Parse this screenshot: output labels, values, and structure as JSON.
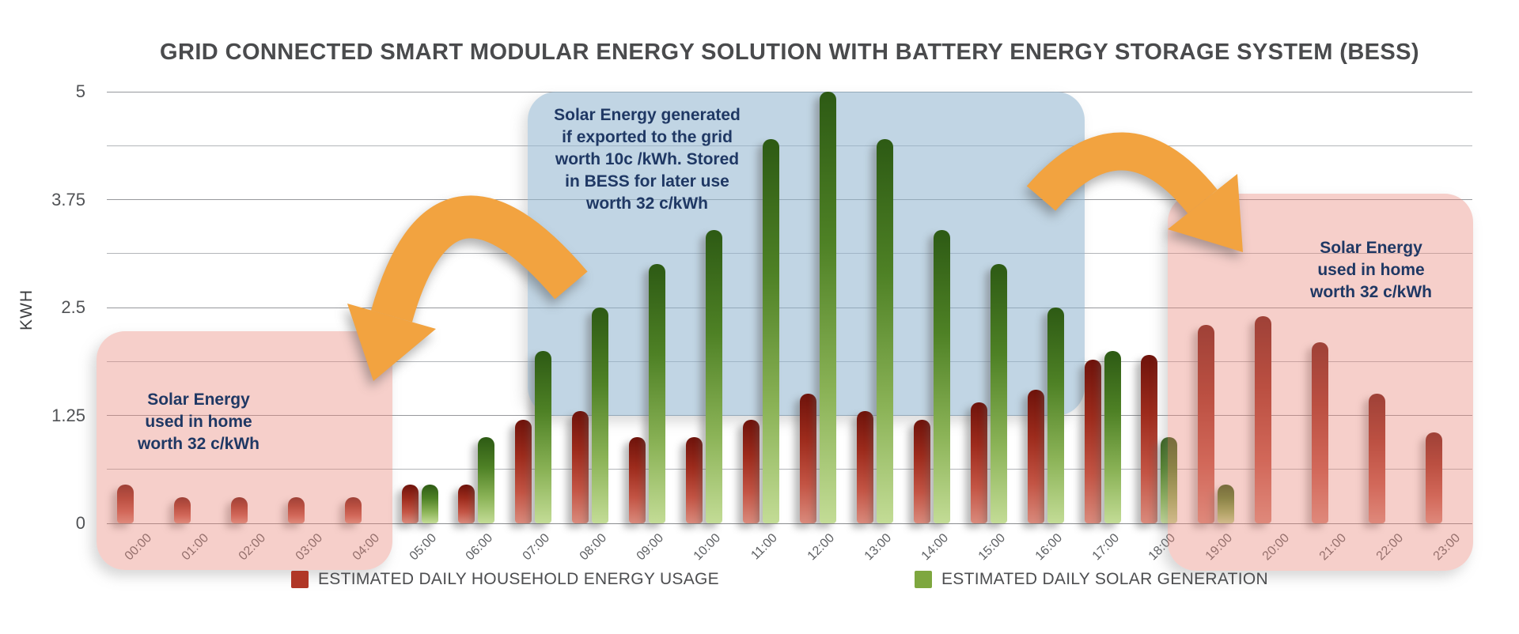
{
  "chart_data": {
    "type": "bar",
    "title": "GRID CONNECTED SMART MODULAR ENERGY SOLUTION  WITH BATTERY ENERGY STORAGE SYSTEM (BESS)",
    "xlabel": "",
    "ylabel": "KWH",
    "ylim": [
      0,
      5
    ],
    "yticks": [
      0,
      1.25,
      2.5,
      3.75,
      5
    ],
    "minor_gridline_step": 0.625,
    "grid": true,
    "legend_position": "bottom",
    "categories": [
      "00:00",
      "01:00",
      "02:00",
      "03:00",
      "04:00",
      "05:00",
      "06:00",
      "07:00",
      "08:00",
      "09:00",
      "10:00",
      "11:00",
      "12:00",
      "13:00",
      "14:00",
      "15:00",
      "16:00",
      "17:00",
      "18:00",
      "19:00",
      "20:00",
      "21:00",
      "22:00",
      "23:00"
    ],
    "series": [
      {
        "name": "ESTIMATED DAILY HOUSEHOLD ENERGY USAGE",
        "color": "#b03727",
        "values": [
          0.45,
          0.3,
          0.3,
          0.3,
          0.3,
          0.45,
          0.45,
          1.2,
          1.3,
          1.0,
          1.0,
          1.2,
          1.5,
          1.3,
          1.2,
          1.4,
          1.55,
          1.9,
          1.95,
          2.3,
          2.4,
          2.1,
          1.5,
          1.05
        ]
      },
      {
        "name": "ESTIMATED DAILY SOLAR GENERATION",
        "color": "#7ea73f",
        "values": [
          0,
          0,
          0,
          0,
          0,
          0.45,
          1.0,
          2.0,
          2.5,
          3.0,
          3.4,
          4.45,
          5.0,
          4.45,
          3.4,
          3.0,
          2.5,
          2.0,
          1.0,
          0.45,
          0,
          0,
          0,
          0
        ]
      }
    ]
  },
  "annotations": {
    "left_pink": {
      "fill": "#e9867a",
      "text": "Solar Energy\nused in home\nworth 32 c/kWh"
    },
    "blue": {
      "fill": "#94b7d0",
      "text": "Solar Energy generated\nif exported to the grid\nworth 10c /kWh. Stored\nin BESS for later use\nworth 32 c/kWh"
    },
    "right_pink": {
      "fill": "#e9867a",
      "text": "Solar Energy\nused in home\nworth 32 c/kWh"
    },
    "arrow_color": "#f2a340"
  }
}
